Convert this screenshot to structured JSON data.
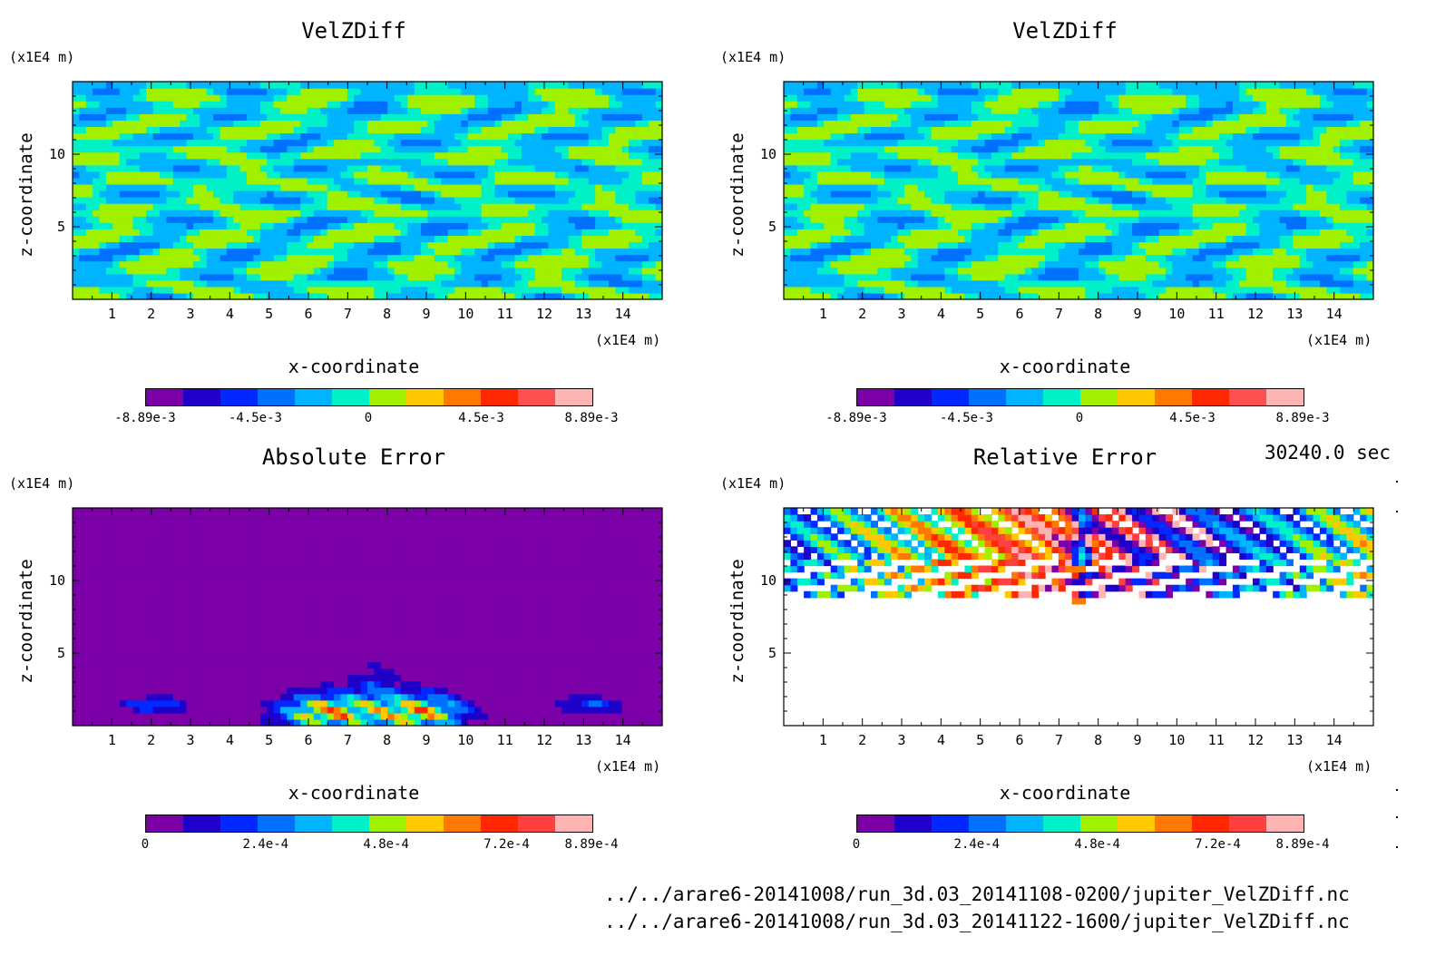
{
  "timestamp": "30240.0 sec",
  "files": [
    "../../arare6-20141008/run_3d.03_20141108-0200/jupiter_VelZDiff.nc",
    "../../arare6-20141008/run_3d.03_20141122-1600/jupiter_VelZDiff.nc"
  ],
  "chart_data": [
    {
      "type": "heatmap",
      "title": "VelZDiff",
      "xlabel": "x-coordinate",
      "ylabel": "z-coordinate",
      "x_unit": "(x1E4 m)",
      "y_unit": "(x1E4 m)",
      "xlim": [
        0,
        15
      ],
      "ylim": [
        0,
        15
      ],
      "x_ticks": [
        1,
        2,
        3,
        4,
        5,
        6,
        7,
        8,
        9,
        10,
        11,
        12,
        13,
        14
      ],
      "y_ticks": [
        5,
        10
      ],
      "pattern": "velocity",
      "colorbar": {
        "range": [
          -0.00889,
          0.00889
        ],
        "tick_labels": [
          "-8.89e-3",
          "-4.5e-3",
          "0",
          "4.5e-3",
          "8.89e-3"
        ],
        "tick_positions": [
          -0.00889,
          -0.0045,
          0,
          0.0045,
          0.00889
        ],
        "colors": [
          "#7b00a8",
          "#1e00c8",
          "#0028ff",
          "#0070ff",
          "#00b4ff",
          "#00f0c8",
          "#a0f000",
          "#ffc800",
          "#ff7800",
          "#ff2800",
          "#ff5050",
          "#ffb4b4"
        ]
      }
    },
    {
      "type": "heatmap",
      "title": "VelZDiff",
      "xlabel": "x-coordinate",
      "ylabel": "z-coordinate",
      "x_unit": "(x1E4 m)",
      "y_unit": "(x1E4 m)",
      "xlim": [
        0,
        15
      ],
      "ylim": [
        0,
        15
      ],
      "x_ticks": [
        1,
        2,
        3,
        4,
        5,
        6,
        7,
        8,
        9,
        10,
        11,
        12,
        13,
        14
      ],
      "y_ticks": [
        5,
        10
      ],
      "pattern": "velocity",
      "colorbar": {
        "range": [
          -0.00889,
          0.00889
        ],
        "tick_labels": [
          "-8.89e-3",
          "-4.5e-3",
          "0",
          "4.5e-3",
          "8.89e-3"
        ],
        "tick_positions": [
          -0.00889,
          -0.0045,
          0,
          0.0045,
          0.00889
        ],
        "colors": [
          "#7b00a8",
          "#1e00c8",
          "#0028ff",
          "#0070ff",
          "#00b4ff",
          "#00f0c8",
          "#a0f000",
          "#ffc800",
          "#ff7800",
          "#ff2800",
          "#ff5050",
          "#ffb4b4"
        ]
      }
    },
    {
      "type": "heatmap",
      "title": "Absolute Error",
      "xlabel": "x-coordinate",
      "ylabel": "z-coordinate",
      "x_unit": "(x1E4 m)",
      "y_unit": "(x1E4 m)",
      "xlim": [
        0,
        15
      ],
      "ylim": [
        0,
        15
      ],
      "x_ticks": [
        1,
        2,
        3,
        4,
        5,
        6,
        7,
        8,
        9,
        10,
        11,
        12,
        13,
        14
      ],
      "y_ticks": [
        5,
        10
      ],
      "pattern": "abs",
      "colorbar": {
        "range": [
          0,
          0.000889
        ],
        "tick_labels": [
          "0",
          "2.4e-4",
          "4.8e-4",
          "7.2e-4",
          "8.89e-4"
        ],
        "tick_positions": [
          0,
          0.00024,
          0.00048,
          0.00072,
          0.000889
        ],
        "colors": [
          "#7b00a8",
          "#1e00c8",
          "#0028ff",
          "#0070ff",
          "#00b4ff",
          "#00f0c8",
          "#a0f000",
          "#ffc800",
          "#ff7800",
          "#ff2800",
          "#ff4040",
          "#ffb4b4"
        ]
      }
    },
    {
      "type": "heatmap",
      "title": "Relative Error",
      "xlabel": "x-coordinate",
      "ylabel": "z-coordinate",
      "x_unit": "(x1E4 m)",
      "y_unit": "(x1E4 m)",
      "xlim": [
        0,
        15
      ],
      "ylim": [
        0,
        15
      ],
      "x_ticks": [
        1,
        2,
        3,
        4,
        5,
        6,
        7,
        8,
        9,
        10,
        11,
        12,
        13,
        14
      ],
      "y_ticks": [
        5,
        10
      ],
      "pattern": "rel",
      "colorbar": {
        "range": [
          0,
          0.000889
        ],
        "tick_labels": [
          "0",
          "2.4e-4",
          "4.8e-4",
          "7.2e-4",
          "8.89e-4"
        ],
        "tick_positions": [
          0,
          0.00024,
          0.00048,
          0.00072,
          0.000889
        ],
        "colors": [
          "#7b00a8",
          "#1e00c8",
          "#0028ff",
          "#0070ff",
          "#00b4ff",
          "#00f0c8",
          "#a0f000",
          "#ffc800",
          "#ff7800",
          "#ff2800",
          "#ff4040",
          "#ffb4b4"
        ]
      }
    }
  ]
}
